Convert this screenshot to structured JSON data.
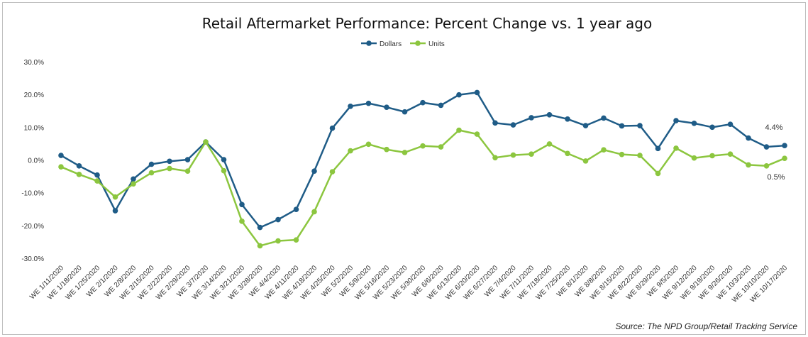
{
  "chart_data": {
    "type": "line",
    "title": "Retail Aftermarket Performance: Percent Change vs. 1 year ago",
    "xlabel": "",
    "ylabel": "",
    "ylim": [
      -30,
      30
    ],
    "yticks": [
      "30.0%",
      "20.0%",
      "10.0%",
      "0.0%",
      "-10.0%",
      "-20.0%",
      "-30.0%"
    ],
    "ytick_values": [
      30,
      20,
      10,
      0,
      -10,
      -20,
      -30
    ],
    "grid": false,
    "legend_position": "top",
    "categories": [
      "WE 1/11/2020",
      "WE 1/18/2020",
      "WE 1/25/2020",
      "WE 2/1/2020",
      "WE 2/8/2020",
      "WE 2/15/2020",
      "WE 2/22/2020",
      "WE 2/29/2020",
      "WE 3/7/2020",
      "WE 3/14/2020",
      "WE 3/21/2020",
      "WE 3/28/2020",
      "WE 4/4/2020",
      "WE 4/11/2020",
      "WE 4/18/2020",
      "WE 4/25/2020",
      "WE 5/2/2020",
      "WE 5/9/2020",
      "WE 5/16/2020",
      "WE 5/23/2020",
      "WE 5/30/2020",
      "WE 6/6/2020",
      "WE 6/13/2020",
      "WE 6/20/2020",
      "WE 6/27/2020",
      "WE 7/4/2020",
      "WE 7/11/2020",
      "WE 7/18/2020",
      "WE 7/25/2020",
      "WE 8/1/2020",
      "WE 8/8/2020",
      "WE 8/15/2020",
      "WE 8/22/2020",
      "WE 8/29/2020",
      "WE 9/5/2020",
      "WE 9/12/2020",
      "WE 9/19/2020",
      "WE 9/26/2020",
      "WE 10/3/2020",
      "WE 10/10/2020",
      "WE 10/17/2020"
    ],
    "series": [
      {
        "name": "Dollars",
        "color": "#1f5c87",
        "values": [
          1.4,
          -1.8,
          -4.6,
          -15.5,
          -5.8,
          -1.3,
          -0.4,
          0.1,
          5.5,
          0.1,
          -13.6,
          -20.6,
          -18.2,
          -15.1,
          -3.4,
          9.7,
          16.4,
          17.3,
          16.1,
          14.7,
          17.5,
          16.7,
          19.9,
          20.6,
          11.3,
          10.7,
          12.9,
          13.8,
          12.5,
          10.5,
          12.8,
          10.4,
          10.5,
          3.5,
          12.0,
          11.2,
          10.0,
          10.9,
          6.7,
          4.0,
          4.4
        ]
      },
      {
        "name": "Units",
        "color": "#8cc63f",
        "values": [
          -2.1,
          -4.4,
          -6.4,
          -11.3,
          -7.3,
          -3.9,
          -2.6,
          -3.4,
          5.5,
          -3.3,
          -18.7,
          -26.2,
          -24.7,
          -24.4,
          -15.8,
          -3.6,
          2.8,
          4.8,
          3.2,
          2.3,
          4.3,
          4.0,
          9.1,
          7.9,
          0.7,
          1.5,
          1.8,
          4.9,
          2.0,
          -0.3,
          3.1,
          1.7,
          1.4,
          -4.1,
          3.6,
          0.6,
          1.3,
          1.8,
          -1.5,
          -1.8,
          0.5
        ]
      }
    ],
    "end_labels": {
      "dollars": "4.4%",
      "units": "0.5%"
    }
  },
  "source": "Source: The NPD Group/Retail Tracking Service"
}
